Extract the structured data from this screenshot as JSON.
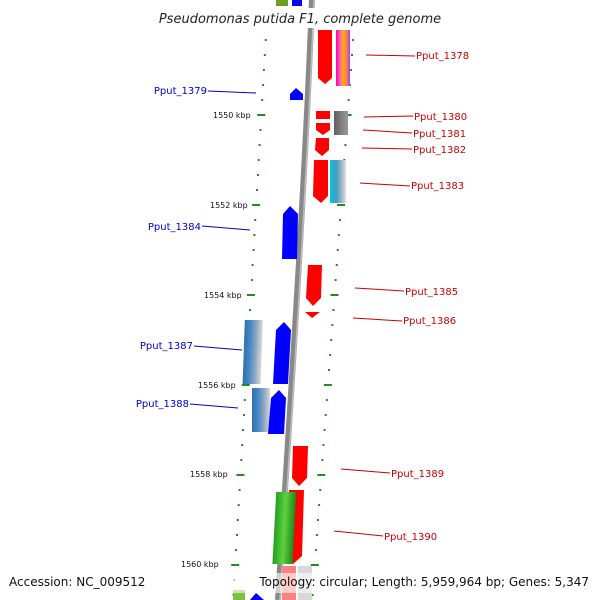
{
  "title": "Pseudomonas putida F1, complete genome",
  "footer": {
    "accession": "Accession: NC_009512",
    "topology": "Topology: circular; Length: 5,959,964 bp; Genes: 5,347"
  },
  "colors": {
    "forward": "#ff0000",
    "reverse": "#0000ff",
    "ticks": "#228b22",
    "backbone": "#888888"
  },
  "kbp_labels": [
    "1550 kbp",
    "1552 kbp",
    "1554 kbp",
    "1556 kbp",
    "1558 kbp",
    "1560 kbp"
  ],
  "genes": {
    "forward": [
      "Pput_1378",
      "Pput_1380",
      "Pput_1381",
      "Pput_1382",
      "Pput_1383",
      "Pput_1385",
      "Pput_1386",
      "Pput_1389",
      "Pput_1390"
    ],
    "reverse": [
      "Pput_1379",
      "Pput_1384",
      "Pput_1387",
      "Pput_1388"
    ]
  }
}
